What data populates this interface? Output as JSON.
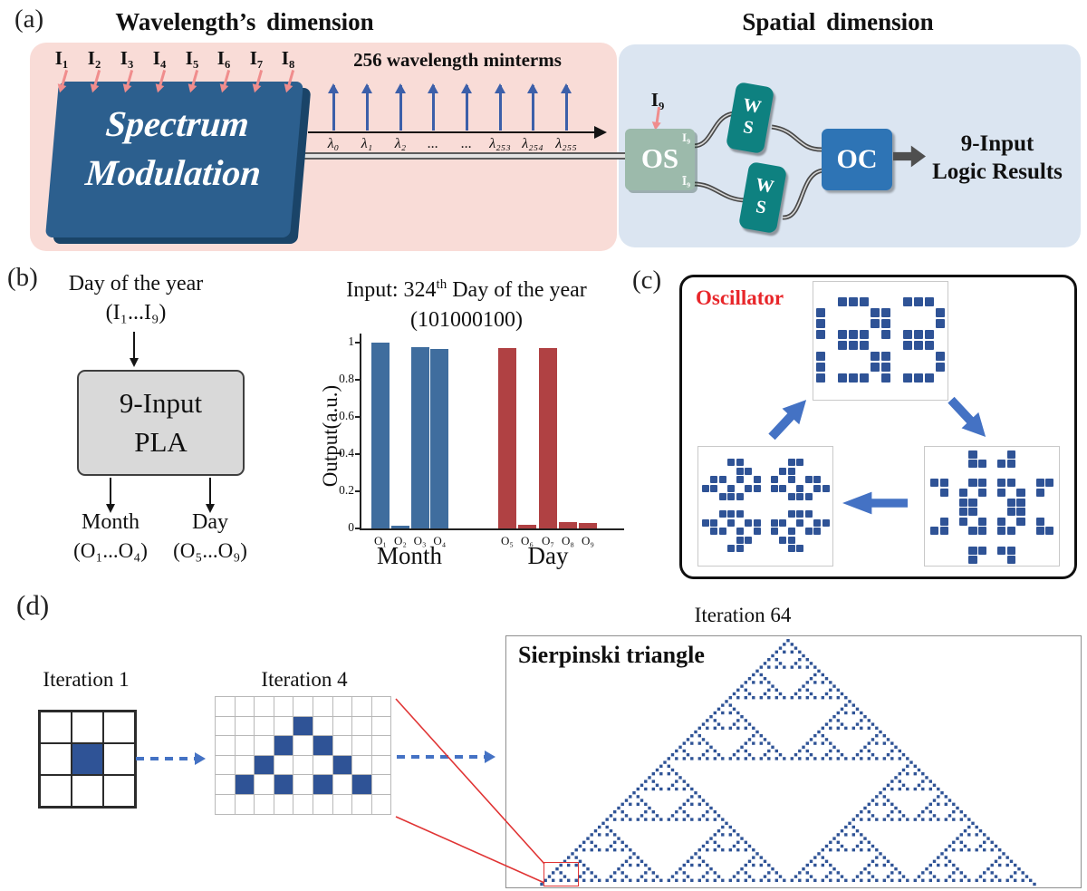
{
  "colors": {
    "panel_pink": "#f9dcd7",
    "panel_blue": "#dbe5f1",
    "spectrum_blue": "#2c5f8e",
    "spectrum_shadow": "#1a4468",
    "os_green": "#9cbaab",
    "ws_teal": "#0e8180",
    "oc_blue": "#2e74b5",
    "cell_blue": "#2f5396",
    "bar_blue": "#3f6d9e",
    "bar_red": "#b04143",
    "arrow_blue": "#4472c4",
    "lambda_blue": "#3c5fa9",
    "input_pink": "#f08d8d",
    "wire_gray": "#4a4a4a",
    "oscillator_red": "#e8262a",
    "callout_red": "#e03434",
    "pla_gray": "#d9d9d9"
  },
  "panel_a": {
    "label": "(a)",
    "title_left": "Wavelength’s dimension",
    "title_right": "Spatial dimension",
    "inputs": [
      "I₁",
      "I₂",
      "I₃",
      "I₄",
      "I₅",
      "I₆",
      "I₇",
      "I₈"
    ],
    "minterms_title": "256 wavelength minterms",
    "lambda_labels": [
      "λ₀",
      "λ₁",
      "λ₂",
      "...",
      "...",
      "λ₂₅₃",
      "λ₂₅₄",
      "λ₂₅₅"
    ],
    "spectrum_lines": [
      "Spectrum",
      "Modulation"
    ],
    "i9_label": "I₉",
    "os_label": "OS",
    "os_port_top": "I₉",
    "os_port_bottom": "Ī₉",
    "ws_lines": [
      "W",
      "S"
    ],
    "oc_label": "OC",
    "result_lines": [
      "9-Input",
      "Logic Results"
    ]
  },
  "panel_b": {
    "label": "(b)",
    "flow": {
      "input_line1": "Day of the year",
      "input_line2": "(I₁...I₉)",
      "box_line1": "9-Input",
      "box_line2": "PLA",
      "out_left_line1": "Month",
      "out_left_line2": "(O₁...O₄)",
      "out_right_line1": "Day",
      "out_right_line2": "(O₅...O₉)"
    }
  },
  "chart_data": {
    "type": "bar",
    "title_pre": "Input: 324",
    "title_sup": "th",
    "title_tail": " Day of the year",
    "subtitle": "(101000100)",
    "ylabel": "Output(a.u.)",
    "ylim": [
      0,
      1
    ],
    "yticks": [
      0,
      0.2,
      0.4,
      0.6,
      0.8,
      1
    ],
    "grid": false,
    "legend": "none",
    "groups": [
      {
        "name": "Month",
        "color": "#3f6d9e",
        "categories": [
          "O₁",
          "O₂",
          "O₃",
          "O₄"
        ],
        "values": [
          1.0,
          0.015,
          0.975,
          0.965
        ]
      },
      {
        "name": "Day",
        "color": "#b04143",
        "categories": [
          "O₅",
          "O₆",
          "O₇",
          "O₈",
          "O₉"
        ],
        "values": [
          0.97,
          0.02,
          0.97,
          0.035,
          0.03
        ]
      }
    ]
  },
  "panel_c": {
    "label": "(c)",
    "title": "Oscillator",
    "patterns": {
      "top": [
        "..###...###.",
        "#....##....#",
        "#....##....#",
        "#.###.#.###.",
        "..###...###.",
        "#....##....#",
        "#....##....#",
        "#.###.#.###."
      ],
      "bottom_right": [
        "....#...#....",
        "....##.##....",
        ".............",
        "##..##.##..##",
        ".#.#.#.#.#.#.",
        "...##...##...",
        "...##...##...",
        ".#.#.#.#.#.#.",
        "##..##.##..##",
        ".............",
        "....##.##....",
        "....#...#...."
      ],
      "bottom_left": [
        "...##.....##...",
        "....##...##....",
        ".##.#.#.#.#.##.",
        "##.#.##.##.#.##",
        "..###.....###..",
        "...............",
        "..###.....###..",
        "##.#.##.##.#.##",
        ".##.#.#.#.#.##.",
        "....##...##....",
        "...##.....##..."
      ]
    }
  },
  "panel_d": {
    "label": "(d)",
    "iter1_title": "Iteration 1",
    "iter4_title": "Iteration 4",
    "iter64_title": "Iteration 64",
    "box_title": "Sierpinski triangle",
    "iter1_grid": [
      "...",
      ".#.",
      "..."
    ],
    "iter4_grid": [
      ".........",
      "....#....",
      "...#.#...",
      "..#...#..",
      ".#.#.#.#.",
      "........."
    ],
    "sierpinski_iterations": 64
  }
}
